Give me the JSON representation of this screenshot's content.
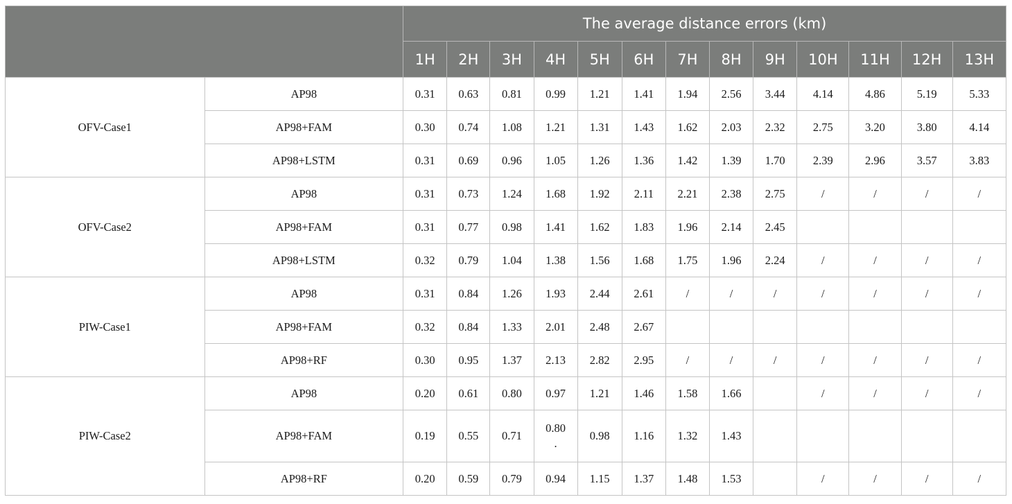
{
  "header": {
    "group_title": "The average distance errors (km)",
    "hours": [
      "1H",
      "2H",
      "3H",
      "4H",
      "5H",
      "6H",
      "7H",
      "8H",
      "9H",
      "10H",
      "11H",
      "12H",
      "13H"
    ]
  },
  "groups": [
    {
      "label": "OFV-Case1",
      "rows": [
        {
          "method": "AP98",
          "values": [
            "0.31",
            "0.63",
            "0.81",
            "0.99",
            "1.21",
            "1.41",
            "1.94",
            "2.56",
            "3.44",
            "4.14",
            "4.86",
            "5.19",
            "5.33"
          ]
        },
        {
          "method": "AP98+FAM",
          "values": [
            "0.30",
            "0.74",
            "1.08",
            "1.21",
            "1.31",
            "1.43",
            "1.62",
            "2.03",
            "2.32",
            "2.75",
            "3.20",
            "3.80",
            "4.14"
          ]
        },
        {
          "method": "AP98+LSTM",
          "values": [
            "0.31",
            "0.69",
            "0.96",
            "1.05",
            "1.26",
            "1.36",
            "1.42",
            "1.39",
            "1.70",
            "2.39",
            "2.96",
            "3.57",
            "3.83"
          ]
        }
      ]
    },
    {
      "label": "OFV-Case2",
      "rows": [
        {
          "method": "AP98",
          "values": [
            "0.31",
            "0.73",
            "1.24",
            "1.68",
            "1.92",
            "2.11",
            "2.21",
            "2.38",
            "2.75",
            "/",
            "/",
            "/",
            "/"
          ]
        },
        {
          "method": "AP98+FAM",
          "values": [
            "0.31",
            "0.77",
            "0.98",
            "1.41",
            "1.62",
            "1.83",
            "1.96",
            "2.14",
            "2.45",
            "",
            "",
            "",
            ""
          ]
        },
        {
          "method": "AP98+LSTM",
          "values": [
            "0.32",
            "0.79",
            "1.04",
            "1.38",
            "1.56",
            "1.68",
            "1.75",
            "1.96",
            "2.24",
            "/",
            "/",
            "/",
            "/"
          ]
        }
      ]
    },
    {
      "label": "PIW-Case1",
      "rows": [
        {
          "method": "AP98",
          "values": [
            "0.31",
            "0.84",
            "1.26",
            "1.93",
            "2.44",
            "2.61",
            "/",
            "/",
            "/",
            "/",
            "/",
            "/",
            "/"
          ]
        },
        {
          "method": "AP98+FAM",
          "values": [
            "0.32",
            "0.84",
            "1.33",
            "2.01",
            "2.48",
            "2.67",
            "",
            "",
            "",
            "",
            "",
            "",
            ""
          ]
        },
        {
          "method": "AP98+RF",
          "values": [
            "0.30",
            "0.95",
            "1.37",
            "2.13",
            "2.82",
            "2.95",
            "/",
            "/",
            "/",
            "/",
            "/",
            "/",
            "/"
          ]
        }
      ]
    },
    {
      "label": "PIW-Case2",
      "rows": [
        {
          "method": "AP98",
          "values": [
            "0.20",
            "0.61",
            "0.80",
            "0.97",
            "1.21",
            "1.46",
            "1.58",
            "1.66",
            "",
            "/",
            "/",
            "/",
            "/"
          ]
        },
        {
          "method": "AP98+FAM",
          "values": [
            "0.19",
            "0.55",
            "0.71",
            "0.80\n.",
            "0.98",
            "1.16",
            "1.32",
            "1.43",
            "",
            "",
            "",
            "",
            ""
          ]
        },
        {
          "method": "AP98+RF",
          "values": [
            "0.20",
            "0.59",
            "0.79",
            "0.94",
            "1.15",
            "1.37",
            "1.48",
            "1.53",
            "",
            "/",
            "/",
            "/",
            "/"
          ]
        }
      ]
    }
  ]
}
